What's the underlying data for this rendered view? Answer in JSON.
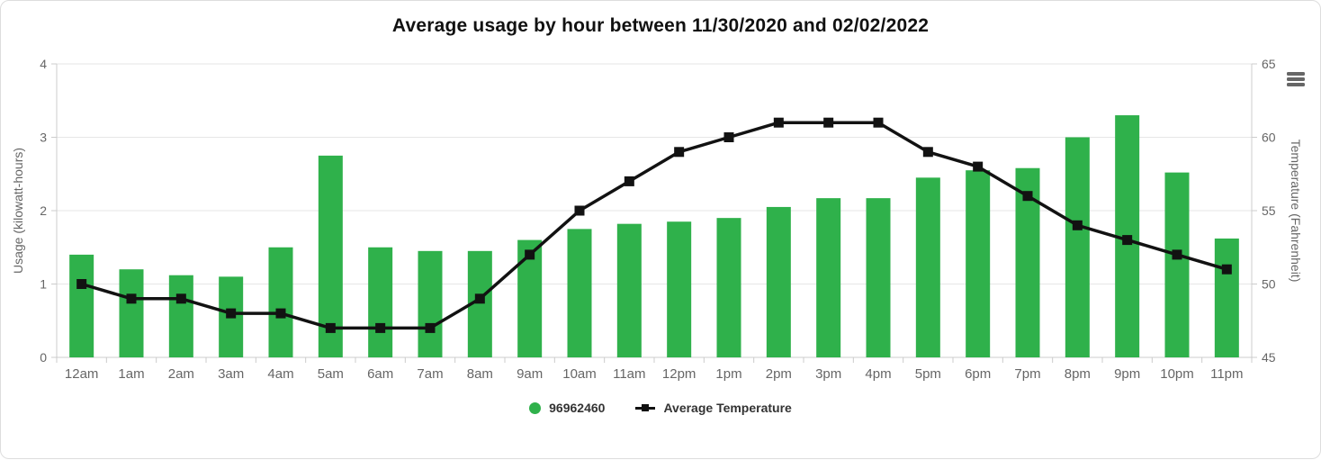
{
  "colors": {
    "bar": "#2FB14B",
    "line": "#121212",
    "grid": "#E6E6E6",
    "axis_line": "#CCCCCC",
    "tick_label": "#666666",
    "axis_title": "#666666",
    "title_text": "#111111",
    "legend_text": "#333333",
    "menu_icon": "#666666",
    "card_border": "#DDDDDD"
  },
  "context_menu": {
    "icon": "hamburger-icon"
  },
  "chart_data": {
    "type": "bar",
    "subtype": "column-and-line-combo",
    "title": "Average usage by hour between 11/30/2020 and 02/02/2022",
    "categories": [
      "12am",
      "1am",
      "2am",
      "3am",
      "4am",
      "5am",
      "6am",
      "7am",
      "8am",
      "9am",
      "10am",
      "11am",
      "12pm",
      "1pm",
      "2pm",
      "3pm",
      "4pm",
      "5pm",
      "6pm",
      "7pm",
      "8pm",
      "9pm",
      "10pm",
      "11pm"
    ],
    "series": [
      {
        "name": "96962460",
        "type": "bar",
        "y_axis": "left",
        "color": "#2FB14B",
        "values": [
          1.4,
          1.2,
          1.12,
          1.1,
          1.5,
          2.75,
          1.5,
          1.45,
          1.45,
          1.6,
          1.75,
          1.82,
          1.85,
          1.9,
          2.05,
          2.17,
          2.17,
          2.45,
          2.55,
          2.58,
          3.0,
          3.3,
          2.52,
          1.62
        ]
      },
      {
        "name": "Average Temperature",
        "type": "line",
        "y_axis": "right",
        "color": "#121212",
        "marker": "square",
        "values": [
          50,
          49,
          49,
          48,
          48,
          47,
          47,
          47,
          49,
          52,
          55,
          57,
          59,
          60,
          61,
          61,
          61,
          59,
          58,
          56,
          54,
          53,
          52,
          51
        ]
      }
    ],
    "left_axis": {
      "title": "Usage (kilowatt-hours)",
      "min": 0,
      "max": 4,
      "ticks": [
        0,
        1,
        2,
        3,
        4
      ]
    },
    "right_axis": {
      "title": "Temperature (Fahrenheit)",
      "min": 45,
      "max": 65,
      "ticks": [
        45,
        50,
        55,
        60,
        65
      ]
    },
    "legend_position": "bottom-center",
    "grid": "horizontal"
  }
}
